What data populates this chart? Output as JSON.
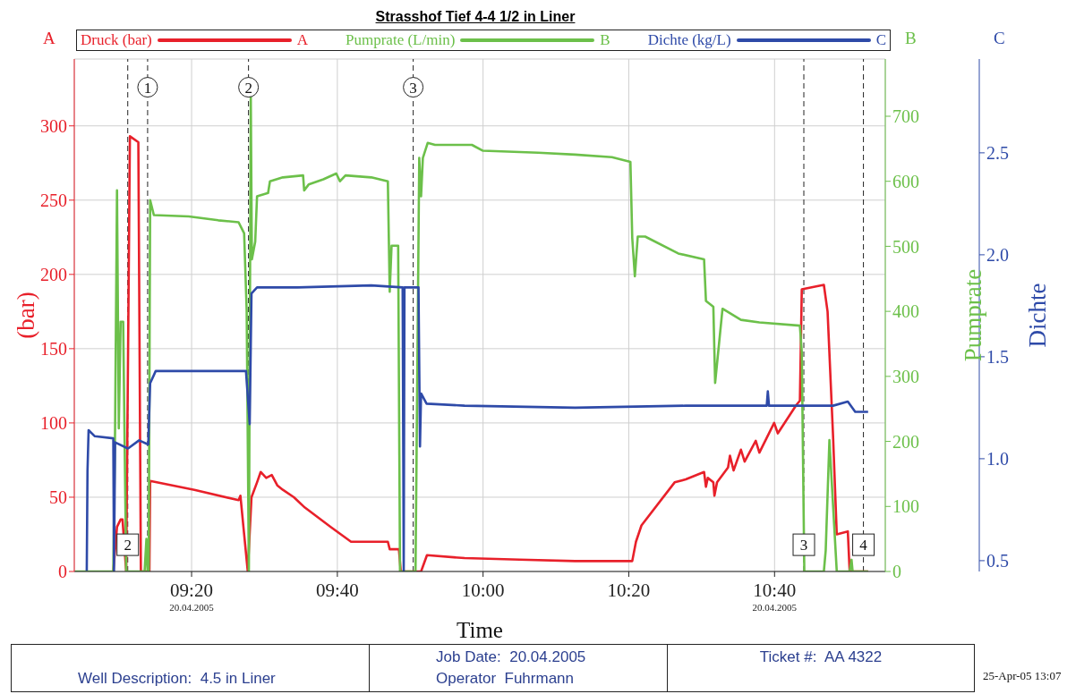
{
  "chart_data": {
    "type": "line",
    "title": "Strasshof Tief 4-4 1/2 in Liner",
    "xlabel": "Time",
    "ylabel": "(bar)",
    "y2label": "Pumprate",
    "y3label": "Dichte",
    "xlim": [
      9.065,
      10.92
    ],
    "xticks": [
      {
        "value": 9.3333,
        "label": "09:20\n20.04.2005"
      },
      {
        "value": 9.6667,
        "label": "09:40"
      },
      {
        "value": 10,
        "label": "10:00"
      },
      {
        "value": 10.3333,
        "label": "10:20"
      },
      {
        "value": 10.6667,
        "label": "10:40\n20.04.2005"
      }
    ],
    "ylim": [
      0,
      345
    ],
    "yticks": [
      0,
      50,
      100,
      150,
      200,
      250,
      300
    ],
    "y2lim": [
      0,
      788
    ],
    "y2ticks": [
      0,
      100,
      200,
      300,
      400,
      500,
      600,
      700
    ],
    "y3lim": [
      0.447,
      2.96
    ],
    "y3ticks": [
      {
        "value": 0.5,
        "label": "0.5"
      },
      {
        "value": 1,
        "label": "1.0"
      },
      {
        "value": 1.5,
        "label": "1.5"
      },
      {
        "value": 2,
        "label": "2.0"
      },
      {
        "value": 2.5,
        "label": "2.5"
      }
    ],
    "grid": true,
    "legend": "top",
    "marker": "none",
    "line_style": "solid",
    "series": [
      {
        "name": "Druck (bar)",
        "color": "#e8202a",
        "x": [
          9.1542,
          9.1627,
          9.171,
          9.1753,
          9.1837,
          9.1922,
          9.2115,
          9.2173,
          9.2368,
          9.2385,
          9.3397,
          9.4408,
          9.445,
          9.4535,
          9.4618,
          9.4703,
          9.483,
          9.4913,
          9.504,
          9.5167,
          9.5293,
          9.542,
          9.5673,
          9.5925,
          9.6515,
          9.698,
          9.7822,
          9.7865,
          9.8075,
          9.8118,
          9.8582,
          9.8717,
          9.9577,
          10.084,
          10.2105,
          10.3412,
          10.3497,
          10.3623,
          10.4382,
          10.4635,
          10.5055,
          10.5098,
          10.514,
          10.5267,
          10.5292,
          10.5352,
          10.5603,
          10.5647,
          10.573,
          10.5898,
          10.5983,
          10.6237,
          10.632,
          10.6658,
          10.6742,
          10.7163,
          10.7247,
          10.729,
          10.7795,
          10.788,
          10.8007,
          10.809,
          10.8343,
          10.8385,
          10.8807
        ],
        "values": [
          0,
          30,
          35,
          35,
          0,
          293,
          289,
          0,
          0,
          61,
          55,
          48,
          51,
          25,
          0,
          50,
          60,
          67,
          63,
          65,
          58,
          55,
          50,
          43,
          30,
          20,
          20,
          15,
          15,
          0,
          0,
          11,
          9,
          8,
          7,
          7,
          20,
          31,
          60,
          62,
          67,
          57,
          63,
          60,
          51,
          60,
          70,
          78,
          68,
          82,
          74,
          88,
          80,
          100,
          93,
          112,
          115,
          190,
          193,
          175,
          90,
          25,
          27,
          0,
          0
        ]
      },
      {
        "name": "Pumprate (L/min)",
        "color": "#6cc04a",
        "axis": "y2",
        "x": [
          9.0667,
          9.1542,
          9.1583,
          9.1627,
          9.1668,
          9.171,
          9.1768,
          9.1837,
          9.2258,
          9.23,
          9.2325,
          9.2352,
          9.2385,
          9.247,
          9.3267,
          9.3942,
          9.4408,
          9.4535,
          9.4593,
          9.4643,
          9.4687,
          9.4712,
          9.4788,
          9.483,
          9.5083,
          9.5125,
          9.542,
          9.5883,
          9.5908,
          9.601,
          9.6347,
          9.6642,
          9.6727,
          9.6853,
          9.7443,
          9.7822,
          9.7865,
          9.7907,
          9.8058,
          9.81,
          9.8455,
          9.854,
          9.8582,
          9.8623,
          9.8733,
          9.8902,
          9.9745,
          9.9998,
          10.1262,
          10.2105,
          10.2948,
          10.337,
          10.3412,
          10.3472,
          10.3538,
          10.3707,
          10.4465,
          10.5055,
          10.5098,
          10.5267,
          10.5308,
          10.5477,
          10.5898,
          10.632,
          10.7247,
          10.729,
          10.7348,
          10.7795,
          10.7837,
          10.7922,
          10.809,
          10.8385,
          10.8428,
          10.8453,
          10.8807
        ],
        "values": [
          0,
          0,
          220,
          586,
          220,
          384,
          384,
          0,
          0,
          50,
          0,
          0,
          571,
          548,
          546,
          540,
          537,
          520,
          401,
          0,
          729,
          480,
          507,
          577,
          582,
          600,
          606,
          609,
          586,
          595,
          603,
          612,
          600,
          609,
          606,
          600,
          430,
          501,
          501,
          0,
          0,
          636,
          577,
          636,
          659,
          656,
          656,
          647,
          644,
          641,
          637,
          630,
          513,
          454,
          515,
          515,
          489,
          480,
          416,
          407,
          290,
          404,
          387,
          383,
          378,
          337,
          0,
          0,
          32,
          202,
          0,
          0,
          18,
          0,
          0
        ]
      },
      {
        "name": "Dichte (kg/L)",
        "color": "#2e4aa8",
        "axis": "y3",
        "x": [
          9.0935,
          9.0952,
          9.0977,
          9.112,
          9.1542,
          9.1558,
          9.1583,
          9.1878,
          9.2132,
          9.2342,
          9.2385,
          9.2512,
          9.3228,
          9.4577,
          9.4662,
          9.4703,
          9.483,
          9.5757,
          9.7443,
          9.816,
          9.8185,
          9.8202,
          9.8523,
          9.8557,
          9.8582,
          9.8708,
          9.9577,
          10.2105,
          10.4635,
          10.6488,
          10.6513,
          10.654,
          10.8007,
          10.8343,
          10.8512,
          10.8807
        ],
        "values": [
          0.45,
          0.94,
          1.14,
          1.11,
          1.1,
          0.45,
          1.08,
          1.05,
          1.09,
          1.07,
          1.37,
          1.43,
          1.43,
          1.43,
          1.17,
          1.81,
          1.84,
          1.84,
          1.85,
          1.84,
          0.45,
          1.84,
          1.84,
          1.06,
          1.32,
          1.27,
          1.26,
          1.25,
          1.26,
          1.26,
          1.33,
          1.26,
          1.26,
          1.28,
          1.23,
          1.23
        ]
      }
    ],
    "ref_lines": [
      {
        "axis": "x",
        "value": 9.2327,
        "line_style": "dashed"
      },
      {
        "axis": "x",
        "value": 9.4635,
        "line_style": "dashed"
      },
      {
        "axis": "x",
        "value": 9.8402,
        "line_style": "dashed"
      },
      {
        "axis": "x",
        "value": 9.1873,
        "line_style": "dashed"
      },
      {
        "axis": "x",
        "value": 10.7337,
        "line_style": "dashed"
      },
      {
        "axis": "x",
        "value": 10.87,
        "line_style": "dashed"
      }
    ],
    "annotations": [
      "A",
      "B",
      "C",
      "Well Description:  4.5 in Liner",
      "Job Date:  20.04.2005",
      "Operator  Fuhrmann",
      "Ticket #:  AA 4322",
      "25-Apr-05 13:07",
      {
        "text": "1",
        "x": 9.2327,
        "y": 326
      },
      {
        "text": "2",
        "x": 9.4635,
        "y": 326
      },
      {
        "text": "3",
        "x": 9.8402,
        "y": 326
      },
      {
        "text": "2",
        "x": 9.1873,
        "y": 18
      },
      {
        "text": "3",
        "x": 10.7337,
        "y": 18
      },
      {
        "text": "4",
        "x": 10.87,
        "y": 18
      }
    ]
  }
}
